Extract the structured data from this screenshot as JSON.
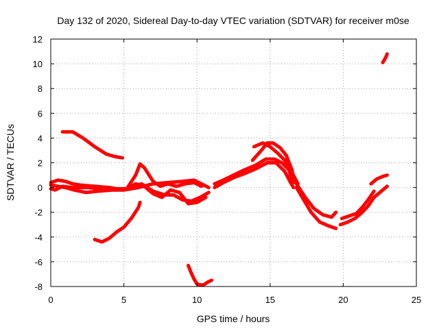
{
  "chart_data": {
    "type": "line",
    "title": "Day 132 of 2020, Sidereal Day-to-day VTEC variation (SDTVAR) for receiver m0se",
    "xlabel": "GPS time / hours",
    "ylabel": "SDTVAR / TECUs",
    "xlim": [
      0,
      25
    ],
    "ylim": [
      -8,
      12
    ],
    "xticks": [
      "0",
      "5",
      "10",
      "15",
      "20",
      "25"
    ],
    "yticks": [
      "12",
      "10",
      "8",
      "6",
      "4",
      "2",
      "0",
      "-2",
      "-4",
      "-6",
      "-8"
    ],
    "grid": true,
    "color": "#ff0000",
    "series": [
      {
        "name": "arc-upper-left",
        "points": [
          [
            0.8,
            4.5
          ],
          [
            1.5,
            4.5
          ],
          [
            2.2,
            4.0
          ],
          [
            3.0,
            3.3
          ],
          [
            3.8,
            2.7
          ],
          [
            4.4,
            2.5
          ],
          [
            4.9,
            2.4
          ]
        ]
      },
      {
        "name": "arc-baseline-a",
        "points": [
          [
            0,
            0.4
          ],
          [
            0.5,
            0.6
          ],
          [
            1.0,
            0.5
          ],
          [
            1.5,
            0.3
          ],
          [
            2.0,
            0.2
          ],
          [
            3.0,
            0.1
          ],
          [
            4.0,
            0.0
          ],
          [
            5.0,
            -0.2
          ],
          [
            6.0,
            0.0
          ],
          [
            7.0,
            0.3
          ],
          [
            8.0,
            0.4
          ],
          [
            9.0,
            0.5
          ],
          [
            9.8,
            0.6
          ],
          [
            10.3,
            0.3
          ],
          [
            10.8,
            0.0
          ]
        ]
      },
      {
        "name": "arc-baseline-b",
        "points": [
          [
            0,
            0.2
          ],
          [
            0.5,
            0.1
          ],
          [
            1.0,
            0.0
          ],
          [
            1.6,
            -0.2
          ],
          [
            2.4,
            -0.4
          ],
          [
            3.2,
            -0.3
          ],
          [
            4.2,
            -0.2
          ],
          [
            5.0,
            -0.2
          ],
          [
            5.6,
            0.0
          ],
          [
            6.2,
            0.3
          ],
          [
            7.0,
            -0.3
          ],
          [
            7.8,
            -0.6
          ],
          [
            8.4,
            -0.6
          ],
          [
            9.0,
            -1.0
          ],
          [
            9.6,
            -1.1
          ],
          [
            10.2,
            -0.8
          ],
          [
            10.8,
            -0.4
          ]
        ]
      },
      {
        "name": "arc-baseline-c",
        "points": [
          [
            0,
            -0.1
          ],
          [
            0.3,
            -0.2
          ],
          [
            0.8,
            0.1
          ],
          [
            1.5,
            0.0
          ],
          [
            2.5,
            0.0
          ],
          [
            3.5,
            -0.1
          ],
          [
            4.5,
            -0.1
          ],
          [
            5.2,
            -0.1
          ],
          [
            5.8,
            0.3
          ],
          [
            6.4,
            0.1
          ],
          [
            7.0,
            -0.5
          ],
          [
            7.6,
            -0.8
          ],
          [
            8.2,
            -0.2
          ],
          [
            8.8,
            -0.4
          ],
          [
            9.4,
            -1.3
          ],
          [
            10.0,
            -1.2
          ],
          [
            10.6,
            -0.8
          ]
        ]
      },
      {
        "name": "arc-mid-wave",
        "points": [
          [
            5.2,
            -0.1
          ],
          [
            5.8,
            1.0
          ],
          [
            6.1,
            1.9
          ],
          [
            6.4,
            1.6
          ],
          [
            7.0,
            0.5
          ],
          [
            7.5,
            0.1
          ],
          [
            8.0,
            0.3
          ],
          [
            8.6,
            0.1
          ],
          [
            9.2,
            0.3
          ],
          [
            9.8,
            0.4
          ],
          [
            10.3,
            0.1
          ]
        ]
      },
      {
        "name": "arc-lower-left",
        "points": [
          [
            3.0,
            -4.2
          ],
          [
            3.5,
            -4.4
          ],
          [
            4.0,
            -4.1
          ],
          [
            4.5,
            -3.6
          ],
          [
            5.0,
            -3.2
          ],
          [
            5.5,
            -2.5
          ],
          [
            6.0,
            -1.6
          ],
          [
            6.1,
            -1.2
          ]
        ]
      },
      {
        "name": "arc-bottom",
        "points": [
          [
            9.4,
            -6.3
          ],
          [
            9.6,
            -6.9
          ],
          [
            9.8,
            -7.4
          ],
          [
            10.0,
            -7.8
          ],
          [
            10.4,
            -7.9
          ],
          [
            10.8,
            -7.6
          ],
          [
            11.0,
            -7.5
          ]
        ]
      },
      {
        "name": "arc-rise-1",
        "points": [
          [
            11.2,
            0.3
          ],
          [
            11.8,
            0.6
          ],
          [
            12.5,
            1.0
          ],
          [
            13.2,
            1.4
          ],
          [
            14.0,
            1.8
          ],
          [
            14.7,
            2.3
          ],
          [
            15.3,
            2.3
          ],
          [
            15.8,
            2.0
          ],
          [
            16.3,
            1.4
          ],
          [
            16.5,
            0.5
          ]
        ]
      },
      {
        "name": "arc-rise-2",
        "points": [
          [
            11.2,
            0.0
          ],
          [
            11.8,
            0.4
          ],
          [
            12.5,
            0.8
          ],
          [
            13.2,
            1.1
          ],
          [
            14.0,
            1.5
          ],
          [
            14.8,
            2.0
          ],
          [
            15.4,
            2.0
          ],
          [
            16.0,
            1.3
          ],
          [
            16.4,
            0.4
          ],
          [
            16.6,
            0.0
          ]
        ]
      },
      {
        "name": "arc-peak",
        "points": [
          [
            13.8,
            2.2
          ],
          [
            14.4,
            3.0
          ],
          [
            14.8,
            3.6
          ],
          [
            15.2,
            3.6
          ],
          [
            15.7,
            3.2
          ],
          [
            16.1,
            2.6
          ],
          [
            16.5,
            1.4
          ],
          [
            16.6,
            0.4
          ]
        ]
      },
      {
        "name": "arc-peak-2",
        "points": [
          [
            13.9,
            3.3
          ],
          [
            14.5,
            3.6
          ],
          [
            15.0,
            3.3
          ],
          [
            15.5,
            2.8
          ],
          [
            16.0,
            2.2
          ],
          [
            16.5,
            1.2
          ],
          [
            16.9,
            0.3
          ]
        ]
      },
      {
        "name": "arc-dip",
        "points": [
          [
            16.8,
            0.0
          ],
          [
            17.3,
            -1.0
          ],
          [
            17.8,
            -2.0
          ],
          [
            18.4,
            -2.8
          ],
          [
            19.0,
            -3.1
          ],
          [
            19.5,
            -3.3
          ]
        ]
      },
      {
        "name": "arc-dip-2",
        "points": [
          [
            16.8,
            0.3
          ],
          [
            17.4,
            -0.8
          ],
          [
            18.0,
            -1.7
          ],
          [
            18.6,
            -2.2
          ],
          [
            19.2,
            -2.4
          ],
          [
            19.5,
            -2.0
          ]
        ]
      },
      {
        "name": "arc-recovery",
        "points": [
          [
            19.8,
            -3.0
          ],
          [
            20.3,
            -2.8
          ],
          [
            20.8,
            -2.5
          ],
          [
            21.3,
            -2.0
          ],
          [
            21.7,
            -1.5
          ],
          [
            22.1,
            -0.8
          ],
          [
            22.5,
            -0.4
          ],
          [
            23.0,
            0.1
          ]
        ]
      },
      {
        "name": "arc-recovery-2",
        "points": [
          [
            19.9,
            -2.5
          ],
          [
            20.4,
            -2.3
          ],
          [
            20.9,
            -2.1
          ],
          [
            21.3,
            -1.6
          ],
          [
            21.7,
            -1.0
          ],
          [
            22.1,
            -0.3
          ]
        ]
      },
      {
        "name": "arc-late",
        "points": [
          [
            21.9,
            0.3
          ],
          [
            22.3,
            0.7
          ],
          [
            22.7,
            0.9
          ],
          [
            23.0,
            1.0
          ]
        ]
      },
      {
        "name": "arc-top-right",
        "points": [
          [
            22.7,
            10.1
          ],
          [
            22.9,
            10.5
          ],
          [
            23.0,
            10.8
          ]
        ]
      }
    ]
  }
}
